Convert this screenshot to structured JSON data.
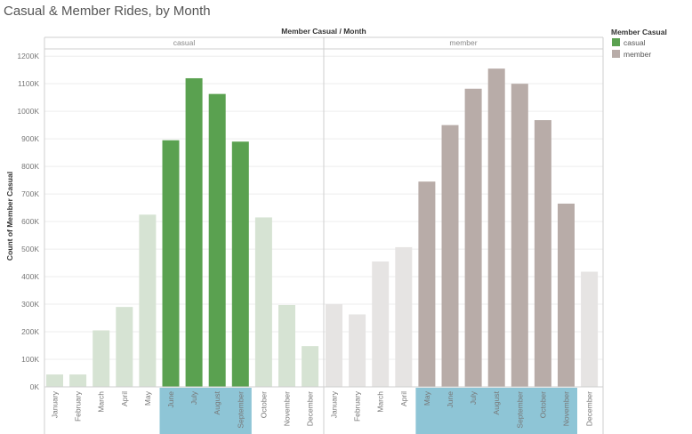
{
  "title": "Casual & Member Rides, by Month",
  "colors": {
    "casual_highlight": "#5aa150",
    "casual_muted": "#d6e3d3",
    "member_highlight": "#b8aca8",
    "member_muted": "#e6e4e3",
    "month_highlight_band": "#8ec5d6",
    "gridline": "#eeeeee",
    "divider": "#cfcfcf"
  },
  "legend": {
    "title": "Member Casual",
    "items": [
      {
        "label": "casual",
        "color": "#5aa150"
      },
      {
        "label": "member",
        "color": "#b8aca8"
      }
    ]
  },
  "chart_data": {
    "type": "bar",
    "title": "Casual & Member Rides, by Month",
    "header": "Member Casual  /  Month",
    "ylabel": "Count of Member Casual",
    "ylim": [
      0,
      1220000
    ],
    "yticks": [
      {
        "value": 0,
        "label": "0K"
      },
      {
        "value": 100000,
        "label": "100K"
      },
      {
        "value": 200000,
        "label": "200K"
      },
      {
        "value": 300000,
        "label": "300K"
      },
      {
        "value": 400000,
        "label": "400K"
      },
      {
        "value": 500000,
        "label": "500K"
      },
      {
        "value": 600000,
        "label": "600K"
      },
      {
        "value": 700000,
        "label": "700K"
      },
      {
        "value": 800000,
        "label": "800K"
      },
      {
        "value": 900000,
        "label": "900K"
      },
      {
        "value": 1000000,
        "label": "1000K"
      },
      {
        "value": 1100000,
        "label": "1100K"
      },
      {
        "value": 1200000,
        "label": "1200K"
      }
    ],
    "panels": [
      {
        "name": "casual",
        "categories": [
          "January",
          "February",
          "March",
          "April",
          "May",
          "June",
          "July",
          "August",
          "September",
          "October",
          "November",
          "December"
        ],
        "values": [
          45000,
          45000,
          205000,
          290000,
          625000,
          895000,
          1120000,
          1063000,
          890000,
          615000,
          297000,
          148000
        ],
        "highlighted": [
          false,
          false,
          false,
          false,
          false,
          true,
          true,
          true,
          true,
          false,
          false,
          false
        ]
      },
      {
        "name": "member",
        "categories": [
          "January",
          "February",
          "March",
          "April",
          "May",
          "June",
          "July",
          "August",
          "September",
          "October",
          "November",
          "December"
        ],
        "values": [
          300000,
          263000,
          455000,
          507000,
          745000,
          950000,
          1082000,
          1155000,
          1100000,
          968000,
          665000,
          418000
        ],
        "highlighted": [
          false,
          false,
          false,
          false,
          true,
          true,
          true,
          true,
          true,
          true,
          true,
          false
        ]
      }
    ]
  }
}
